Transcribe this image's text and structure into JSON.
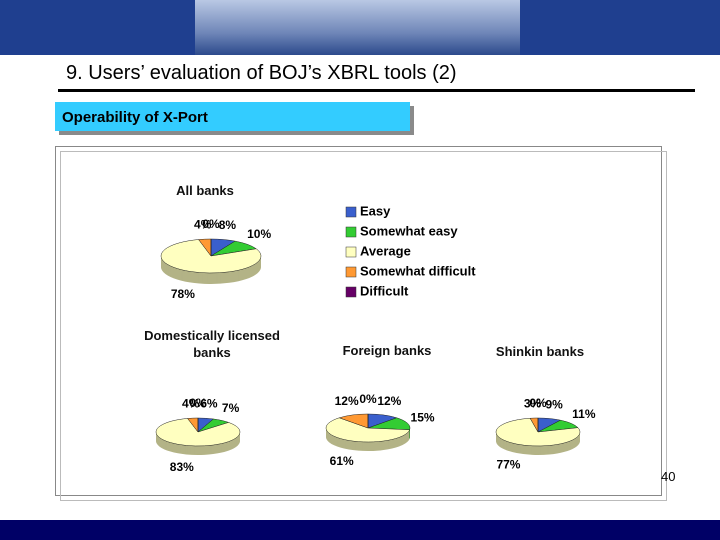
{
  "header": {
    "title": "9. Users’ evaluation of BOJ’s XBRL tools (2)"
  },
  "section": "Operability of X-Port",
  "page_number": "40",
  "legend": {
    "labels": [
      "Easy",
      "Somewhat easy",
      "Average",
      "Somewhat difficult",
      "Difficult"
    ],
    "colors": [
      "#3a5fcd",
      "#33cc33",
      "#ffffc0",
      "#ff9933",
      "#660066"
    ]
  },
  "chart_data": [
    {
      "type": "pie",
      "title": "All banks",
      "values": [
        8,
        10,
        78,
        4,
        0
      ],
      "value_labels": [
        "8%",
        "10%",
        "78%",
        "4%",
        "0%"
      ]
    },
    {
      "type": "pie",
      "title": "Domestically licensed banks",
      "values": [
        6,
        7,
        83,
        4,
        0
      ],
      "value_labels": [
        "6%",
        "7%",
        "83%",
        "4%",
        "0%"
      ]
    },
    {
      "type": "pie",
      "title": "Foreign banks",
      "values": [
        12,
        15,
        61,
        12,
        0
      ],
      "value_labels": [
        "12%",
        "15%",
        "61%",
        "12%",
        "0%"
      ]
    },
    {
      "type": "pie",
      "title": "Shinkin banks",
      "values": [
        9,
        11,
        77,
        3,
        0
      ],
      "value_labels": [
        "9%",
        "11%",
        "77%",
        "3%",
        "0%"
      ]
    }
  ]
}
